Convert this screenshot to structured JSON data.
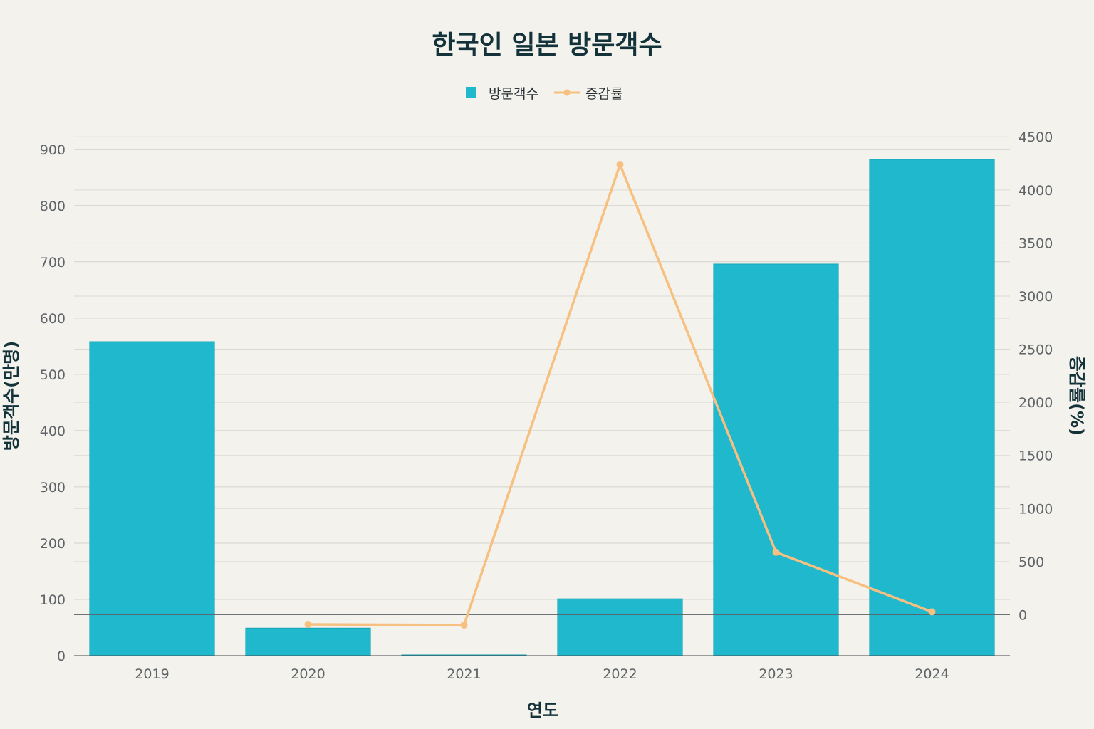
{
  "chart_data": {
    "type": "bar",
    "title": "한국인 일본 방문객수",
    "xlabel": "연도",
    "ylabel": "방문객수(만명)",
    "y2label": "증감률(%)",
    "categories": [
      "2019",
      "2020",
      "2021",
      "2022",
      "2023",
      "2024"
    ],
    "ylim": [
      0,
      925
    ],
    "y_ticks": [
      0,
      100,
      200,
      300,
      400,
      500,
      600,
      700,
      800,
      900
    ],
    "y2lim": [
      -386,
      4515
    ],
    "y2_ticks": [
      0,
      500,
      1000,
      1500,
      2000,
      2500,
      3000,
      3500,
      4000,
      4500
    ],
    "series": [
      {
        "name": "방문객수",
        "type": "bar",
        "axis": "left",
        "color": "#1fb8cd",
        "values": [
          558,
          49,
          1.3,
          101,
          696,
          882
        ]
      },
      {
        "name": "증감률",
        "type": "line",
        "axis": "right",
        "color": "#f7c081",
        "values": [
          null,
          -91.3,
          -97.3,
          4240,
          588,
          27
        ]
      }
    ],
    "legend_position": "top-center",
    "grid": true
  }
}
